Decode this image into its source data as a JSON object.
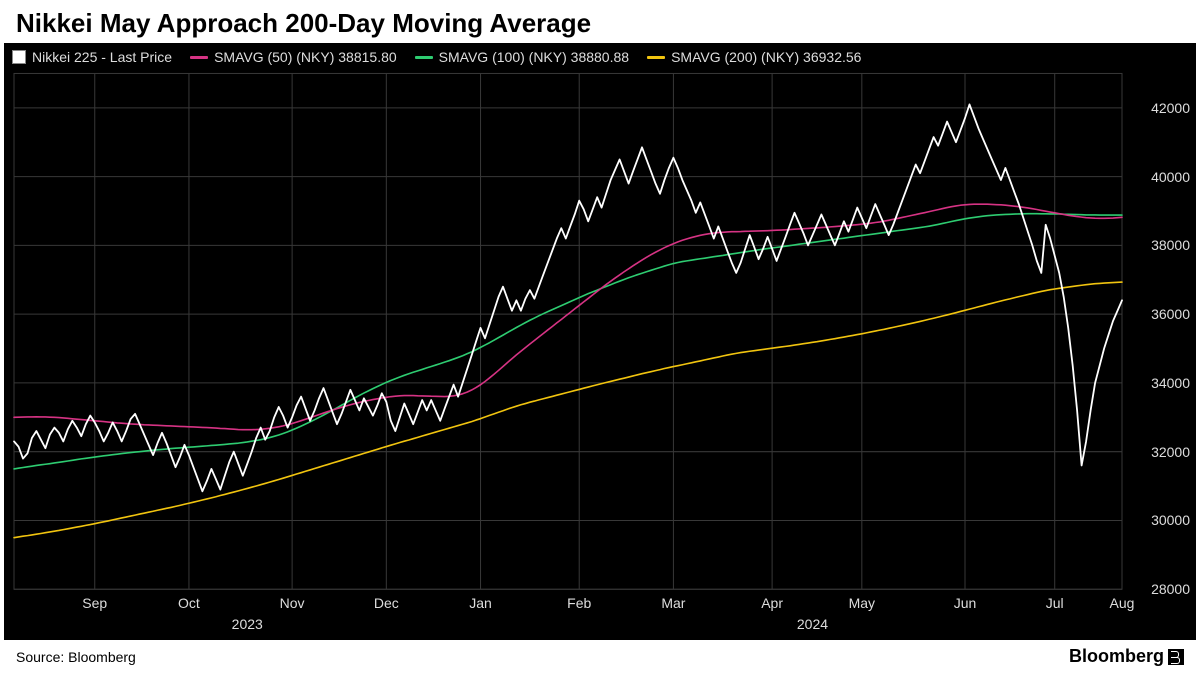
{
  "title": "Nikkei May Approach 200-Day Moving Average",
  "source": "Source: Bloomberg",
  "brand": "Bloomberg",
  "chart": {
    "type": "line",
    "background_color": "#000000",
    "grid_color": "#383838",
    "text_color": "#dddddd",
    "title_fontsize": 26,
    "axis_fontsize": 14,
    "line_width_price": 1.8,
    "line_width_ma": 1.6,
    "ylim": [
      28000,
      43000
    ],
    "yticks": [
      28000,
      30000,
      32000,
      34000,
      36000,
      38000,
      40000,
      42000
    ],
    "x_count": 248,
    "x_month_labels": [
      {
        "i": 18,
        "label": "Sep"
      },
      {
        "i": 39,
        "label": "Oct"
      },
      {
        "i": 62,
        "label": "Nov"
      },
      {
        "i": 83,
        "label": "Dec"
      },
      {
        "i": 104,
        "label": "Jan"
      },
      {
        "i": 126,
        "label": "Feb"
      },
      {
        "i": 147,
        "label": "Mar"
      },
      {
        "i": 169,
        "label": "Apr"
      },
      {
        "i": 189,
        "label": "May"
      },
      {
        "i": 212,
        "label": "Jun"
      },
      {
        "i": 232,
        "label": "Jul"
      },
      {
        "i": 247,
        "label": "Aug"
      }
    ],
    "x_year_labels": [
      {
        "i": 52,
        "label": "2023"
      },
      {
        "i": 178,
        "label": "2024"
      }
    ],
    "legend": [
      {
        "kind": "box",
        "color": "#ffffff",
        "label": "Nikkei 225 - Last Price"
      },
      {
        "kind": "line",
        "color": "#d63384",
        "label": "SMAVG (50) (NKY) 38815.80"
      },
      {
        "kind": "line",
        "color": "#2ecc71",
        "label": "SMAVG (100) (NKY) 38880.88"
      },
      {
        "kind": "line",
        "color": "#f1c40f",
        "label": "SMAVG (200) (NKY) 36932.56"
      }
    ],
    "series": {
      "price": {
        "color": "#ffffff",
        "values": [
          32300,
          32150,
          31800,
          31950,
          32400,
          32600,
          32350,
          32100,
          32500,
          32700,
          32550,
          32300,
          32650,
          32900,
          32700,
          32450,
          32800,
          33050,
          32850,
          32600,
          32300,
          32550,
          32850,
          32600,
          32300,
          32600,
          32950,
          33100,
          32800,
          32500,
          32200,
          31900,
          32250,
          32550,
          32250,
          31900,
          31550,
          31850,
          32200,
          31900,
          31550,
          31200,
          30850,
          31150,
          31500,
          31200,
          30900,
          31300,
          31700,
          32000,
          31650,
          31300,
          31650,
          32000,
          32400,
          32700,
          32350,
          32600,
          33000,
          33300,
          33050,
          32700,
          33000,
          33350,
          33600,
          33250,
          32900,
          33200,
          33550,
          33850,
          33500,
          33150,
          32800,
          33100,
          33450,
          33800,
          33500,
          33200,
          33550,
          33300,
          33050,
          33350,
          33700,
          33450,
          32900,
          32600,
          33000,
          33400,
          33100,
          32800,
          33150,
          33500,
          33200,
          33500,
          33200,
          32900,
          33250,
          33600,
          33950,
          33600,
          34000,
          34400,
          34800,
          35200,
          35600,
          35300,
          35700,
          36100,
          36500,
          36800,
          36450,
          36100,
          36400,
          36100,
          36450,
          36700,
          36450,
          36800,
          37150,
          37500,
          37850,
          38200,
          38500,
          38200,
          38550,
          38900,
          39300,
          39050,
          38700,
          39050,
          39400,
          39100,
          39500,
          39900,
          40200,
          40500,
          40150,
          39800,
          40150,
          40500,
          40850,
          40500,
          40150,
          39800,
          39500,
          39900,
          40250,
          40550,
          40250,
          39900,
          39600,
          39300,
          38950,
          39250,
          38900,
          38550,
          38200,
          38550,
          38200,
          37850,
          37500,
          37200,
          37500,
          37900,
          38300,
          37950,
          37600,
          37900,
          38250,
          37900,
          37550,
          37900,
          38250,
          38600,
          38950,
          38650,
          38350,
          38000,
          38300,
          38600,
          38900,
          38600,
          38300,
          38000,
          38350,
          38700,
          38400,
          38750,
          39100,
          38800,
          38500,
          38850,
          39200,
          38900,
          38600,
          38300,
          38600,
          38950,
          39300,
          39650,
          40000,
          40350,
          40100,
          40450,
          40800,
          41150,
          40900,
          41250,
          41600,
          41300,
          41000,
          41350,
          41700,
          42100,
          41750,
          41400,
          41100,
          40800,
          40500,
          40200,
          39900,
          40250,
          39900,
          39550,
          39200,
          38800,
          38400,
          38000,
          37550,
          37200,
          38600,
          38200,
          37700,
          37200,
          36500,
          35600,
          34500,
          33200,
          31600,
          32300,
          33200,
          34000,
          34500,
          35000,
          35400,
          35800,
          36100,
          36400
        ]
      },
      "sma50": {
        "color": "#d63384",
        "values": [
          33000,
          33005,
          33008,
          33010,
          33012,
          33013,
          33012,
          33010,
          33006,
          33000,
          32992,
          32982,
          32970,
          32958,
          32946,
          32934,
          32922,
          32910,
          32898,
          32886,
          32874,
          32862,
          32850,
          32838,
          32828,
          32818,
          32808,
          32800,
          32792,
          32784,
          32778,
          32772,
          32766,
          32760,
          32754,
          32748,
          32742,
          32736,
          32730,
          32724,
          32718,
          32712,
          32706,
          32700,
          32694,
          32686,
          32678,
          32670,
          32662,
          32654,
          32646,
          32642,
          32640,
          32640,
          32644,
          32652,
          32664,
          32680,
          32700,
          32724,
          32752,
          32784,
          32820,
          32860,
          32902,
          32946,
          32990,
          33034,
          33078,
          33122,
          33166,
          33210,
          33252,
          33292,
          33330,
          33366,
          33400,
          33432,
          33462,
          33490,
          33516,
          33540,
          33562,
          33582,
          33600,
          33614,
          33624,
          33630,
          33632,
          33630,
          33626,
          33622,
          33618,
          33614,
          33610,
          33606,
          33604,
          33610,
          33624,
          33648,
          33684,
          33732,
          33792,
          33864,
          33948,
          34042,
          34144,
          34252,
          34364,
          34478,
          34592,
          34704,
          34814,
          34922,
          35028,
          35132,
          35234,
          35336,
          35438,
          35540,
          35642,
          35744,
          35846,
          35948,
          36050,
          36152,
          36254,
          36356,
          36458,
          36560,
          36662,
          36762,
          36860,
          36956,
          37050,
          37142,
          37232,
          37320,
          37406,
          37490,
          37572,
          37652,
          37728,
          37800,
          37868,
          37932,
          37992,
          38048,
          38100,
          38148,
          38190,
          38228,
          38262,
          38292,
          38318,
          38340,
          38358,
          38372,
          38382,
          38390,
          38396,
          38400,
          38404,
          38408,
          38412,
          38416,
          38420,
          38424,
          38430,
          38436,
          38442,
          38448,
          38454,
          38462,
          38470,
          38478,
          38486,
          38494,
          38502,
          38510,
          38518,
          38528,
          38538,
          38548,
          38558,
          38568,
          38580,
          38592,
          38604,
          38616,
          38630,
          38646,
          38664,
          38684,
          38706,
          38730,
          38756,
          38784,
          38812,
          38840,
          38868,
          38896,
          38924,
          38952,
          38980,
          39010,
          39040,
          39070,
          39100,
          39126,
          39148,
          39166,
          39180,
          39190,
          39196,
          39198,
          39198,
          39196,
          39192,
          39186,
          39178,
          39168,
          39156,
          39142,
          39126,
          39108,
          39088,
          39066,
          39042,
          39018,
          38994,
          38970,
          38946,
          38922,
          38898,
          38876,
          38856,
          38838,
          38822,
          38808,
          38798,
          38790,
          38786,
          38786,
          38790,
          38796,
          38804,
          38815
        ]
      },
      "sma100": {
        "color": "#2ecc71",
        "values": [
          31500,
          31520,
          31540,
          31560,
          31580,
          31600,
          31618,
          31636,
          31654,
          31672,
          31690,
          31710,
          31730,
          31750,
          31770,
          31790,
          31808,
          31826,
          31844,
          31862,
          31880,
          31896,
          31912,
          31928,
          31944,
          31960,
          31974,
          31988,
          32002,
          32016,
          32030,
          32042,
          32054,
          32066,
          32078,
          32090,
          32100,
          32110,
          32120,
          32130,
          32140,
          32150,
          32160,
          32170,
          32180,
          32190,
          32200,
          32212,
          32224,
          32236,
          32250,
          32266,
          32284,
          32304,
          32326,
          32350,
          32378,
          32410,
          32446,
          32486,
          32530,
          32578,
          32630,
          32686,
          32744,
          32804,
          32866,
          32930,
          32996,
          33064,
          33134,
          33206,
          33278,
          33350,
          33422,
          33494,
          33566,
          33636,
          33704,
          33770,
          33834,
          33896,
          33956,
          34014,
          34070,
          34122,
          34172,
          34220,
          34266,
          34310,
          34352,
          34394,
          34436,
          34478,
          34520,
          34562,
          34604,
          34648,
          34694,
          34742,
          34792,
          34846,
          34904,
          34966,
          35032,
          35100,
          35170,
          35242,
          35316,
          35390,
          35464,
          35538,
          35612,
          35684,
          35754,
          35822,
          35888,
          35952,
          36014,
          36074,
          36132,
          36190,
          36248,
          36306,
          36364,
          36422,
          36480,
          36538,
          36594,
          36648,
          36700,
          36752,
          36804,
          36856,
          36908,
          36960,
          37010,
          37058,
          37104,
          37148,
          37190,
          37232,
          37274,
          37316,
          37358,
          37400,
          37438,
          37472,
          37502,
          37528,
          37550,
          37570,
          37590,
          37610,
          37630,
          37650,
          37670,
          37690,
          37710,
          37730,
          37750,
          37770,
          37790,
          37810,
          37830,
          37850,
          37870,
          37888,
          37906,
          37924,
          37942,
          37960,
          37978,
          37996,
          38014,
          38032,
          38050,
          38068,
          38086,
          38104,
          38122,
          38140,
          38158,
          38176,
          38194,
          38212,
          38230,
          38248,
          38266,
          38284,
          38302,
          38320,
          38338,
          38356,
          38374,
          38392,
          38410,
          38428,
          38446,
          38464,
          38482,
          38500,
          38518,
          38538,
          38560,
          38584,
          38610,
          38638,
          38666,
          38694,
          38722,
          38748,
          38772,
          38794,
          38814,
          38832,
          38848,
          38862,
          38874,
          38884,
          38892,
          38898,
          38904,
          38910,
          38916,
          38920,
          38922,
          38922,
          38922,
          38920,
          38918,
          38916,
          38914,
          38912,
          38908,
          38904,
          38900,
          38896,
          38892,
          38888,
          38886,
          38884,
          38882,
          38880,
          38880,
          38880,
          38880,
          38880
        ]
      },
      "sma200": {
        "color": "#f1c40f",
        "values": [
          29500,
          29520,
          29540,
          29560,
          29580,
          29600,
          29622,
          29644,
          29666,
          29688,
          29710,
          29734,
          29758,
          29782,
          29806,
          29830,
          29856,
          29882,
          29908,
          29934,
          29960,
          29988,
          30016,
          30044,
          30072,
          30100,
          30128,
          30156,
          30184,
          30212,
          30240,
          30268,
          30296,
          30324,
          30352,
          30380,
          30410,
          30440,
          30470,
          30500,
          30530,
          30562,
          30594,
          30626,
          30658,
          30690,
          30724,
          30758,
          30792,
          30826,
          30860,
          30896,
          30932,
          30968,
          31004,
          31040,
          31078,
          31116,
          31154,
          31192,
          31230,
          31270,
          31310,
          31350,
          31390,
          31430,
          31470,
          31510,
          31550,
          31590,
          31630,
          31670,
          31710,
          31750,
          31790,
          31830,
          31870,
          31910,
          31950,
          31990,
          32030,
          32070,
          32110,
          32150,
          32190,
          32228,
          32266,
          32304,
          32342,
          32380,
          32418,
          32456,
          32494,
          32532,
          32570,
          32608,
          32646,
          32684,
          32722,
          32760,
          32798,
          32836,
          32876,
          32918,
          32962,
          33008,
          33054,
          33100,
          33146,
          33192,
          33238,
          33282,
          33324,
          33364,
          33402,
          33438,
          33472,
          33506,
          33540,
          33574,
          33608,
          33642,
          33676,
          33710,
          33744,
          33778,
          33812,
          33846,
          33880,
          33914,
          33948,
          33980,
          34012,
          34044,
          34076,
          34108,
          34140,
          34172,
          34204,
          34236,
          34268,
          34298,
          34328,
          34358,
          34388,
          34418,
          34446,
          34474,
          34502,
          34530,
          34558,
          34586,
          34614,
          34642,
          34670,
          34698,
          34726,
          34754,
          34782,
          34810,
          34836,
          34860,
          34882,
          34902,
          34920,
          34938,
          34956,
          34974,
          34992,
          35010,
          35028,
          35046,
          35064,
          35082,
          35100,
          35120,
          35140,
          35160,
          35180,
          35200,
          35222,
          35244,
          35266,
          35288,
          35310,
          35334,
          35358,
          35382,
          35406,
          35430,
          35456,
          35482,
          35508,
          35534,
          35560,
          35588,
          35616,
          35644,
          35672,
          35700,
          35730,
          35760,
          35790,
          35820,
          35850,
          35882,
          35914,
          35946,
          35978,
          36010,
          36044,
          36078,
          36112,
          36146,
          36180,
          36214,
          36248,
          36282,
          36316,
          36350,
          36382,
          36414,
          36446,
          36478,
          36510,
          36540,
          36570,
          36600,
          36630,
          36660,
          36686,
          36710,
          36732,
          36752,
          36770,
          36788,
          36806,
          36824,
          36842,
          36858,
          36872,
          36884,
          36894,
          36904,
          36912,
          36920,
          36926,
          36932
        ]
      }
    }
  }
}
